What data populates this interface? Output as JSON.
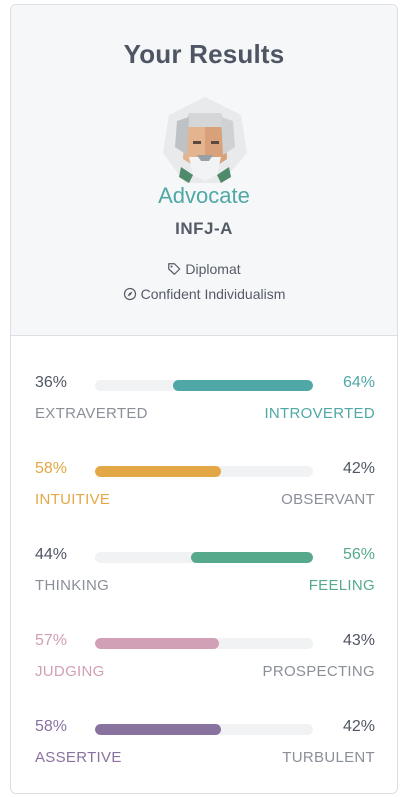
{
  "header": {
    "title": "Your Results",
    "type_name": "Advocate",
    "type_code": "INFJ-A",
    "role": "Diplomat",
    "strategy": "Confident Individualism",
    "accent": "#4fa8a6"
  },
  "traits": [
    {
      "left_pct": "36%",
      "right_pct": "64%",
      "left_label": "EXTRAVERTED",
      "right_label": "INTROVERTED",
      "dominant": "right",
      "value": 0.64,
      "color": "#4fa8a6"
    },
    {
      "left_pct": "58%",
      "right_pct": "42%",
      "left_label": "INTUITIVE",
      "right_label": "OBSERVANT",
      "dominant": "left",
      "value": 0.58,
      "color": "#e3a845"
    },
    {
      "left_pct": "44%",
      "right_pct": "56%",
      "left_label": "THINKING",
      "right_label": "FEELING",
      "dominant": "right",
      "value": 0.56,
      "color": "#56a98a"
    },
    {
      "left_pct": "57%",
      "right_pct": "43%",
      "left_label": "JUDGING",
      "right_label": "PROSPECTING",
      "dominant": "left",
      "value": 0.57,
      "color": "#d19fb6"
    },
    {
      "left_pct": "58%",
      "right_pct": "42%",
      "left_label": "ASSERTIVE",
      "right_label": "TURBULENT",
      "dominant": "left",
      "value": 0.58,
      "color": "#89729e"
    }
  ],
  "icons": {
    "role": "tag-icon",
    "strategy": "compass-icon",
    "avatar": "advocate-avatar-icon"
  }
}
